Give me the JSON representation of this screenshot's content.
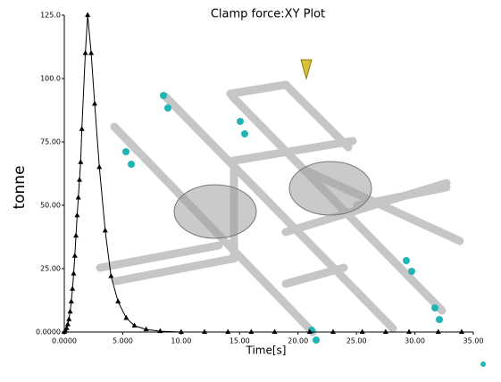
{
  "chart_data": {
    "type": "line",
    "title": "Clamp force:XY Plot",
    "xlabel": "Time[s]",
    "ylabel": "tonne",
    "x": [
      0,
      0.1,
      0.2,
      0.3,
      0.4,
      0.5,
      0.6,
      0.7,
      0.8,
      0.9,
      1.0,
      1.1,
      1.2,
      1.3,
      1.4,
      1.5,
      1.8,
      2.0,
      2.3,
      2.6,
      3.0,
      3.5,
      4.0,
      4.6,
      5.3,
      6.0,
      7.0,
      8.2,
      10,
      12,
      14,
      16,
      18,
      21,
      23,
      25.5,
      27.5,
      29.5,
      32,
      34
    ],
    "values": [
      0,
      0.5,
      1.5,
      3,
      5,
      8,
      12,
      17,
      23,
      30,
      38,
      46,
      53,
      60,
      67,
      80,
      110,
      125,
      110,
      90,
      65,
      40,
      22,
      12,
      5.5,
      2.5,
      1,
      0.3,
      0,
      0,
      0,
      0,
      0,
      0,
      0,
      0,
      0,
      0,
      0,
      0
    ],
    "color": "#000000",
    "xlim": [
      0,
      35
    ],
    "ylim": [
      0,
      125
    ],
    "xticks": [
      {
        "value": 0,
        "label": "0.0000"
      },
      {
        "value": 5,
        "label": "5.000"
      },
      {
        "value": 10,
        "label": "10.00"
      },
      {
        "value": 15,
        "label": "15.00"
      },
      {
        "value": 20,
        "label": "20.00"
      },
      {
        "value": 25,
        "label": "25.00"
      },
      {
        "value": 30,
        "label": "30.00"
      },
      {
        "value": 35,
        "label": "35.00"
      }
    ],
    "yticks": [
      {
        "value": 0,
        "label": "0.0000"
      },
      {
        "value": 25,
        "label": "25.00"
      },
      {
        "value": 50,
        "label": "50.00"
      },
      {
        "value": 75,
        "label": "75.00"
      },
      {
        "value": 100,
        "label": "100.0"
      },
      {
        "value": 125,
        "label": "125.0"
      }
    ]
  }
}
